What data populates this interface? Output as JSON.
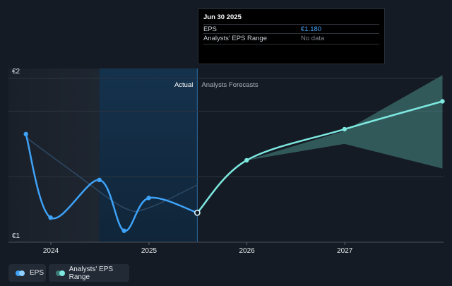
{
  "chart_data": {
    "type": "line",
    "y_tick_labels": [
      "€2",
      "€1"
    ],
    "ylim": [
      1,
      2
    ],
    "x_tick_labels": [
      "2024",
      "2025",
      "2026",
      "2027"
    ],
    "section_labels": {
      "actual": "Actual",
      "forecast": "Analysts Forecasts"
    },
    "series": [
      {
        "name": "EPS",
        "color": "#3ea2f7",
        "points": [
          {
            "x": "2023-09-30",
            "y": 1.66
          },
          {
            "x": "2023-12-31",
            "y": 1.15
          },
          {
            "x": "2024-06-30",
            "y": 1.38
          },
          {
            "x": "2024-09-30",
            "y": 1.07
          },
          {
            "x": "2024-12-31",
            "y": 1.27
          },
          {
            "x": "2025-06-30",
            "y": 1.18
          }
        ]
      },
      {
        "name": "EPS forecast",
        "color": "#7de8e0",
        "points": [
          {
            "x": "2025-06-30",
            "y": 1.18
          },
          {
            "x": "2025-12-31",
            "y": 1.5
          },
          {
            "x": "2026-12-31",
            "y": 1.69
          },
          {
            "x": "2027-12-31",
            "y": 1.86
          }
        ]
      },
      {
        "name": "Analysts' EPS Range",
        "color": "#4a8c86",
        "upper": [
          {
            "x": "2025-06-30",
            "y": 1.18
          },
          {
            "x": "2025-12-31",
            "y": 1.5
          },
          {
            "x": "2026-12-31",
            "y": 1.68
          },
          {
            "x": "2027-12-31",
            "y": 2.02
          }
        ],
        "lower": [
          {
            "x": "2025-06-30",
            "y": 1.18
          },
          {
            "x": "2025-12-31",
            "y": 1.5
          },
          {
            "x": "2026-12-31",
            "y": 1.6
          },
          {
            "x": "2027-12-31",
            "y": 1.45
          }
        ]
      },
      {
        "name": "EPS trend",
        "color": "#2e4a66",
        "points": [
          {
            "x": "2023-09-30",
            "y": 1.64
          },
          {
            "x": "2024-03-31",
            "y": 1.42
          },
          {
            "x": "2024-09-30",
            "y": 1.21
          },
          {
            "x": "2024-12-31",
            "y": 1.21
          },
          {
            "x": "2025-06-30",
            "y": 1.35
          }
        ]
      }
    ],
    "highlight": {
      "from": "2024-06-30",
      "to": "2025-06-30"
    },
    "grid": true
  },
  "tooltip": {
    "date": "Jun 30 2025",
    "rows": [
      {
        "key": "EPS",
        "value": "€1.180"
      },
      {
        "key": "Analysts' EPS Range",
        "value": "No data"
      }
    ]
  },
  "legend": [
    {
      "label": "EPS",
      "colors": [
        "#3ea2f7",
        "#8fd0ff"
      ]
    },
    {
      "label": "Analysts' EPS Range",
      "colors": [
        "#3d7a76",
        "#7de8e0"
      ]
    }
  ]
}
